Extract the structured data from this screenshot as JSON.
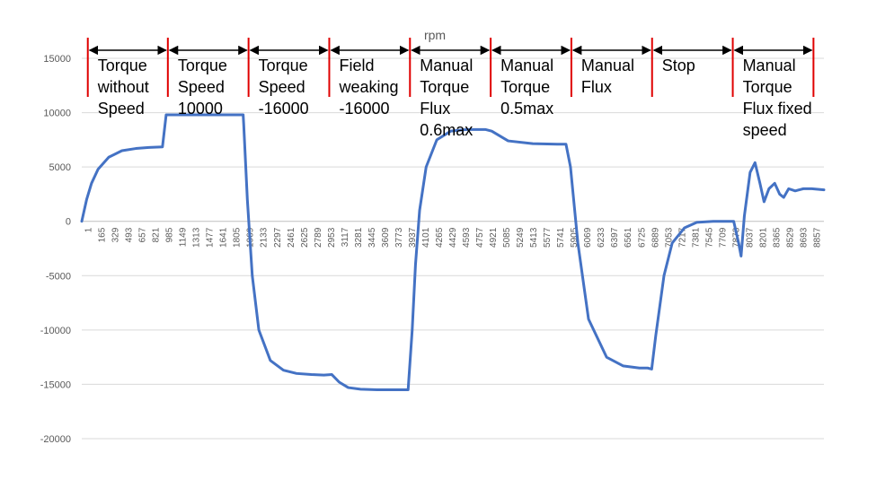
{
  "chart_data": {
    "type": "line",
    "title": "rpm",
    "xlabel": "",
    "ylabel": "",
    "ylim": [
      -20000,
      15000
    ],
    "yticks": [
      15000,
      10000,
      5000,
      0,
      -5000,
      -10000,
      -15000,
      -20000
    ],
    "ytick_labels": [
      "15000",
      "10000",
      "5000",
      "0",
      "-5000",
      "-10000",
      "-15000",
      "-20000"
    ],
    "xlim": [
      1,
      9050
    ],
    "xtick_labels": [
      "1",
      "165",
      "329",
      "493",
      "657",
      "821",
      "985",
      "1149",
      "1313",
      "1477",
      "1641",
      "1805",
      "1969",
      "2133",
      "2297",
      "2461",
      "2625",
      "2789",
      "2953",
      "3117",
      "3281",
      "3445",
      "3609",
      "3773",
      "3937",
      "4101",
      "4265",
      "4429",
      "4593",
      "4757",
      "4921",
      "5085",
      "5249",
      "5413",
      "5577",
      "5741",
      "5905",
      "6069",
      "6233",
      "6397",
      "6561",
      "6725",
      "6889",
      "7053",
      "7217",
      "7381",
      "7545",
      "7709",
      "7873",
      "8037",
      "8201",
      "8365",
      "8529",
      "8693",
      "8857"
    ],
    "grid": true,
    "legend": "none",
    "series": [
      {
        "name": "",
        "color": "#4472C4",
        "x": [
          1,
          60,
          120,
          200,
          330,
          490,
          660,
          820,
          985,
          1030,
          1969,
          1975,
          2020,
          2080,
          2160,
          2300,
          2460,
          2620,
          2800,
          2953,
          3050,
          3140,
          3250,
          3400,
          3600,
          3780,
          3980,
          4030,
          4070,
          4120,
          4200,
          4330,
          4500,
          4700,
          4921,
          5000,
          5200,
          5500,
          5800,
          5905,
          5960,
          6050,
          6180,
          6400,
          6600,
          6800,
          6900,
          6950,
          7000,
          7100,
          7200,
          7350,
          7500,
          7700,
          7950,
          8010,
          8040,
          8080,
          8150,
          8210,
          8270,
          8320,
          8380,
          8450,
          8510,
          8560,
          8620,
          8700,
          8800,
          8900,
          9050
        ],
        "y": [
          0,
          2000,
          3500,
          4800,
          5900,
          6500,
          6700,
          6800,
          6850,
          9800,
          9800,
          9000,
          2000,
          -5000,
          -10000,
          -12800,
          -13700,
          -14000,
          -14100,
          -14150,
          -14100,
          -14800,
          -15300,
          -15450,
          -15500,
          -15500,
          -15500,
          -10000,
          -4000,
          1000,
          5000,
          7500,
          8300,
          8450,
          8450,
          8300,
          7400,
          7150,
          7100,
          7100,
          5000,
          -2000,
          -9000,
          -12500,
          -13300,
          -13500,
          -13500,
          -13600,
          -10500,
          -5000,
          -2000,
          -600,
          -100,
          0,
          0,
          -2000,
          -3200,
          500,
          4500,
          5400,
          3500,
          1800,
          3000,
          3500,
          2500,
          2200,
          3000,
          2800,
          3000,
          3000,
          2900
        ]
      }
    ],
    "segment_boundaries": [
      985,
      1969,
      2953,
      3937,
      4921,
      5905,
      6889,
      7873,
      8857
    ],
    "segments": [
      {
        "lines": [
          "Torque",
          "without",
          "Speed"
        ]
      },
      {
        "lines": [
          "Torque",
          "Speed",
          "10000"
        ]
      },
      {
        "lines": [
          "Torque",
          "Speed",
          "-16000"
        ]
      },
      {
        "lines": [
          "Field",
          "weaking",
          "-16000"
        ]
      },
      {
        "lines": [
          "Manual",
          "Torque",
          "Flux",
          "0.6max"
        ]
      },
      {
        "lines": [
          "Manual",
          "Torque",
          "0.5max"
        ]
      },
      {
        "lines": [
          "Manual",
          "Flux"
        ]
      },
      {
        "lines": [
          "Stop"
        ]
      },
      {
        "lines": [
          "Manual",
          "Torque",
          "Flux fixed",
          "speed"
        ]
      }
    ],
    "colors": {
      "series": "#4472C4",
      "boundary": "#E00000",
      "arrow": "#000000",
      "grid": "#D9D9D9",
      "axis": "#BFBFBF",
      "tick_text": "#595959"
    }
  }
}
